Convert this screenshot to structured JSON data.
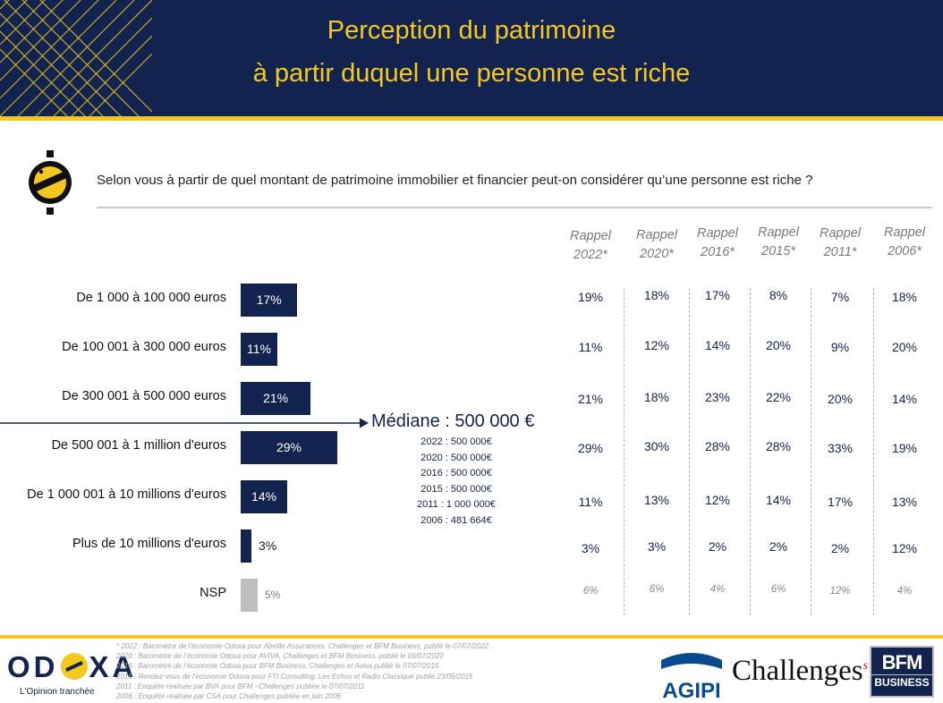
{
  "header": {
    "title_line1": "Perception du patrimoine",
    "title_line2": "à partir duquel une personne est riche"
  },
  "question": "Selon vous à partir de quel montant de patrimoine immobilier et financier peut-on considérer qu’une personne est riche ?",
  "median": {
    "title": "Médiane : 500 000 €",
    "history": [
      "2022 : 500 000€",
      "2020 : 500 000€",
      "2016 : 500 000€",
      "2015 : 500 000€",
      "2011 : 1 000 000€",
      "2006 : 481 664€"
    ]
  },
  "chart_data": {
    "type": "bar",
    "orientation": "horizontal",
    "categories": [
      "De 1 000 à 100 000 euros",
      "De 100 001 à 300 000 euros",
      "De 300 001 à 500 000 euros",
      "De 500 001 à 1 million d'euros",
      "De 1 000 001 à 10 millions d'euros",
      "Plus de 10 millions d'euros",
      "NSP"
    ],
    "values": [
      17,
      11,
      21,
      29,
      14,
      3,
      5
    ],
    "value_labels": [
      "17%",
      "11%",
      "21%",
      "29%",
      "14%",
      "3%",
      "5%"
    ],
    "unit": "%",
    "colors": [
      "#13234f",
      "#13234f",
      "#13234f",
      "#13234f",
      "#13234f",
      "#13234f",
      "#bfbfbf"
    ],
    "xlim": [
      0,
      29
    ],
    "rappel": {
      "headers": [
        [
          "Rappel",
          "2022*"
        ],
        [
          "Rappel",
          "2020*"
        ],
        [
          "Rappel",
          "2016*"
        ],
        [
          "Rappel",
          "2015*"
        ],
        [
          "Rappel",
          "2011*"
        ],
        [
          "Rappel",
          "2006*"
        ]
      ],
      "values": [
        [
          "19%",
          "18%",
          "17%",
          "8%",
          "7%",
          "18%"
        ],
        [
          "11%",
          "12%",
          "14%",
          "20%",
          "9%",
          "20%"
        ],
        [
          "21%",
          "18%",
          "23%",
          "22%",
          "20%",
          "14%"
        ],
        [
          "29%",
          "30%",
          "28%",
          "28%",
          "33%",
          "19%"
        ],
        [
          "11%",
          "13%",
          "12%",
          "14%",
          "17%",
          "13%"
        ],
        [
          "3%",
          "3%",
          "2%",
          "2%",
          "2%",
          "12%"
        ],
        [
          "6%",
          "6%",
          "4%",
          "6%",
          "12%",
          "4%"
        ]
      ]
    }
  },
  "footer": {
    "odoxa_left": "OD",
    "odoxa_right": "XA",
    "odoxa_tagline": "L'Opinion tranchée",
    "sources": [
      "* 2022 : Baromètre de l’économie Odoxa pour Abeille Assurances, Challenges et BFM Business, publié le 07/07/2022",
      "2020 : Baromètre de l’économie Odoxa pour AVIVA, Challenges et BFM Business, publié le 09/07/2020",
      "2016 : Baromètre de l’économie Odoxa pour BFM Business, Challenges et Aviva publié le 07/07/2016",
      "2015 : Rendez-vous de l’économie Odoxa pour FTI Consulting, Les Echos et Radio Classique publié 23/06/2015",
      "2011 : Enquête réalisée par BVA pour BFM –Challenges publiée le 07/07/2011",
      "2006 : Enquête réalisée par CSA pour Challenges publiée en juin 2006"
    ],
    "partner_agipi": "AGIPI",
    "partner_challenges": "Challenges",
    "partner_challenges_mark": "s",
    "partner_bfm_line1": "BFM",
    "partner_bfm_line2": "BUSINESS",
    "brand_navy": "#13234f",
    "brand_yellow": "#f3c81f"
  }
}
